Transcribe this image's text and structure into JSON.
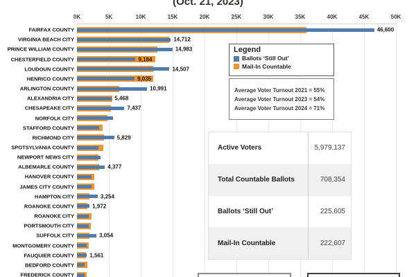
{
  "title": "(Oct. 21, 2023)",
  "colors": {
    "ballots_still_out": "#4f7cac",
    "mail_in_countable": "#ef962f",
    "gridline": "#e9e9e9"
  },
  "chart_data": {
    "type": "bar",
    "orientation": "horizontal",
    "title": "(Oct. 21, 2023)",
    "x_axis": {
      "ticks": [
        "0K",
        "5K",
        "10K",
        "15K",
        "20K",
        "25K",
        "30K",
        "35K",
        "40K",
        "45K",
        "50K"
      ],
      "max": 50000
    },
    "grid": true,
    "legend": {
      "title": "Legend",
      "position": "top-right"
    },
    "categories": [
      "FAIRFAX COUNTY",
      "VIRGINIA BEACH CITY",
      "PRINCE WILLIAM COUNTY",
      "CHESTERFIELD COUNTY",
      "LOUDOUN COUNTY",
      "HENRICO COUNTY",
      "ARLINGTON COUNTY",
      "ALEXANDRIA CITY",
      "CHESAPEAKE CITY",
      "NORFOLK CITY",
      "STAFFORD COUNTY",
      "RICHMOND CITY",
      "SPOTSYLVANIA COUNTY",
      "NEWPORT NEWS CITY",
      "ALBEMARLE COUNTY",
      "HANOVER COUNTY",
      "JAMES CITY COUNTY",
      "HAMPTON CITY",
      "ROANOKE COUNTY",
      "ROANOKE CITY",
      "PORTSMOUTH CITY",
      "SUFFOLK CITY",
      "MONTGOMERY COUNTY",
      "FAUQUIER COUNTY",
      "BEDFORD COUNTY",
      "FREDERICK COUNTY"
    ],
    "series": [
      {
        "name": "Ballots ‘Still Out’",
        "color": "#4f7cac",
        "values": [
          46600,
          14712,
          14983,
          9184,
          14507,
          9035,
          10991,
          5468,
          7437,
          5600,
          3500,
          5829,
          3400,
          3700,
          4377,
          2300,
          2300,
          3254,
          1972,
          1800,
          1900,
          3054,
          1500,
          1561,
          1200,
          1200
        ],
        "data_labels": [
          "46,600",
          "14,712",
          "14,983",
          "9,184",
          "14,507",
          "9,035",
          "10,991",
          "5,468",
          "7,437",
          null,
          null,
          "5,829",
          null,
          null,
          "4,377",
          null,
          null,
          "3,254",
          "1,972",
          null,
          null,
          "3,054",
          null,
          "1,561",
          null,
          null
        ]
      },
      {
        "name": "Mail-In Countable",
        "color": "#ef962f",
        "values": [
          36000,
          14500,
          12600,
          12300,
          12000,
          12000,
          6600,
          5500,
          5300,
          4800,
          4000,
          4200,
          4100,
          3400,
          3500,
          2700,
          2700,
          2000,
          1600,
          2300,
          2200,
          2000,
          1800,
          1400,
          1600,
          1500
        ],
        "data_labels": [
          null,
          null,
          null,
          null,
          null,
          null,
          null,
          null,
          null,
          null,
          null,
          null,
          null,
          null,
          null,
          null,
          null,
          null,
          null,
          null,
          null,
          null,
          null,
          null,
          null,
          null
        ]
      }
    ]
  },
  "legend": {
    "title": "Legend"
  },
  "turnout_box": {
    "lines": [
      "Average Voter Turnout 2021 = 55%",
      "Average Voter Turnout 2023 = 54%",
      "Average Voter Turnout 2024 = 71%"
    ]
  },
  "summary_table": {
    "rows": [
      {
        "label": "Active Voters",
        "value": "5,979,137"
      },
      {
        "label": "Total Countable Ballots",
        "value": "708,354"
      },
      {
        "label": "Ballots ‘Still Out’",
        "value": "225,605"
      },
      {
        "label": "Mail-In Countable",
        "value": "222,607"
      }
    ]
  }
}
